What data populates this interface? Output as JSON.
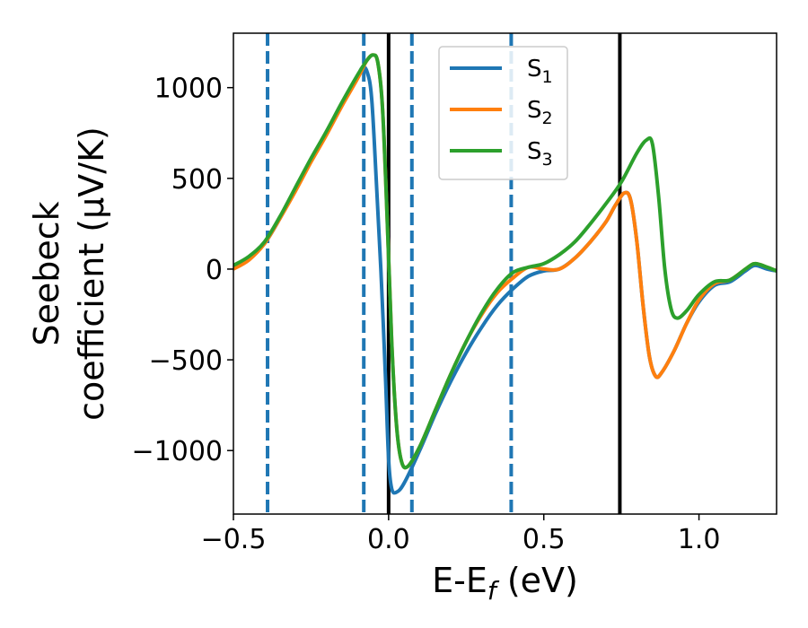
{
  "chart_data": {
    "type": "line",
    "xlabel": "E-E_f (eV)",
    "ylabel": "Seebeck coefficient (μV/K)",
    "ylabel_lines": [
      "Seebeck",
      "coefficient  (μV/K)"
    ],
    "xlim": [
      -0.5,
      1.25
    ],
    "ylim": [
      -1350,
      1300
    ],
    "xticks": [
      -0.5,
      0.0,
      0.5,
      1.0
    ],
    "xtick_labels": [
      "−0.5",
      "0.0",
      "0.5",
      "1.0"
    ],
    "yticks": [
      -1000,
      -500,
      0,
      500,
      1000
    ],
    "ytick_labels": [
      "−1000",
      "−500",
      "0",
      "500",
      "1000"
    ],
    "grid": false,
    "legend_position": "top-center",
    "vlines_dashed": [
      -0.39,
      -0.08,
      0.075,
      0.395
    ],
    "vlines_solid": [
      0.0,
      0.745
    ],
    "vline_dashed_color": "#1f77b4",
    "vline_solid_color": "#000000",
    "series": [
      {
        "name": "S1",
        "color": "#1f77b4",
        "points": [
          [
            -0.5,
            10
          ],
          [
            -0.45,
            60
          ],
          [
            -0.4,
            140
          ],
          [
            -0.35,
            280
          ],
          [
            -0.3,
            440
          ],
          [
            -0.25,
            600
          ],
          [
            -0.2,
            750
          ],
          [
            -0.15,
            910
          ],
          [
            -0.1,
            1060
          ],
          [
            -0.085,
            1110
          ],
          [
            -0.07,
            1090
          ],
          [
            -0.055,
            950
          ],
          [
            -0.04,
            500
          ],
          [
            -0.025,
            0
          ],
          [
            -0.01,
            -600
          ],
          [
            0.0,
            -1050
          ],
          [
            0.01,
            -1210
          ],
          [
            0.025,
            -1230
          ],
          [
            0.05,
            -1180
          ],
          [
            0.1,
            -1000
          ],
          [
            0.15,
            -800
          ],
          [
            0.2,
            -620
          ],
          [
            0.25,
            -460
          ],
          [
            0.3,
            -320
          ],
          [
            0.35,
            -200
          ],
          [
            0.4,
            -110
          ],
          [
            0.45,
            -40
          ],
          [
            0.5,
            -10
          ],
          [
            0.55,
            0
          ],
          [
            0.6,
            60
          ],
          [
            0.65,
            150
          ],
          [
            0.7,
            260
          ],
          [
            0.73,
            350
          ],
          [
            0.76,
            420
          ],
          [
            0.78,
            380
          ],
          [
            0.8,
            150
          ],
          [
            0.82,
            -200
          ],
          [
            0.84,
            -480
          ],
          [
            0.86,
            -590
          ],
          [
            0.88,
            -570
          ],
          [
            0.92,
            -450
          ],
          [
            0.96,
            -300
          ],
          [
            1.0,
            -180
          ],
          [
            1.05,
            -90
          ],
          [
            1.1,
            -70
          ],
          [
            1.15,
            -10
          ],
          [
            1.18,
            20
          ],
          [
            1.22,
            0
          ],
          [
            1.25,
            -10
          ]
        ]
      },
      {
        "name": "S2",
        "color": "#ff7f0e",
        "points": [
          [
            -0.5,
            0
          ],
          [
            -0.45,
            50
          ],
          [
            -0.4,
            140
          ],
          [
            -0.35,
            280
          ],
          [
            -0.3,
            430
          ],
          [
            -0.25,
            590
          ],
          [
            -0.2,
            740
          ],
          [
            -0.15,
            900
          ],
          [
            -0.1,
            1050
          ],
          [
            -0.07,
            1150
          ],
          [
            -0.05,
            1180
          ],
          [
            -0.035,
            1140
          ],
          [
            -0.02,
            900
          ],
          [
            -0.005,
            300
          ],
          [
            0.01,
            -400
          ],
          [
            0.025,
            -850
          ],
          [
            0.04,
            -1050
          ],
          [
            0.06,
            -1090
          ],
          [
            0.1,
            -980
          ],
          [
            0.15,
            -780
          ],
          [
            0.2,
            -580
          ],
          [
            0.25,
            -400
          ],
          [
            0.3,
            -250
          ],
          [
            0.35,
            -130
          ],
          [
            0.4,
            -50
          ],
          [
            0.45,
            10
          ],
          [
            0.5,
            0
          ],
          [
            0.55,
            0
          ],
          [
            0.6,
            60
          ],
          [
            0.65,
            150
          ],
          [
            0.7,
            260
          ],
          [
            0.73,
            350
          ],
          [
            0.76,
            420
          ],
          [
            0.78,
            380
          ],
          [
            0.8,
            150
          ],
          [
            0.82,
            -200
          ],
          [
            0.84,
            -480
          ],
          [
            0.86,
            -590
          ],
          [
            0.88,
            -570
          ],
          [
            0.92,
            -450
          ],
          [
            0.96,
            -300
          ],
          [
            1.0,
            -170
          ],
          [
            1.05,
            -80
          ],
          [
            1.1,
            -60
          ],
          [
            1.15,
            0
          ],
          [
            1.18,
            30
          ],
          [
            1.22,
            10
          ],
          [
            1.25,
            -10
          ]
        ]
      },
      {
        "name": "S3",
        "color": "#2ca02c",
        "points": [
          [
            -0.5,
            20
          ],
          [
            -0.45,
            70
          ],
          [
            -0.4,
            150
          ],
          [
            -0.35,
            290
          ],
          [
            -0.3,
            450
          ],
          [
            -0.25,
            610
          ],
          [
            -0.2,
            760
          ],
          [
            -0.15,
            920
          ],
          [
            -0.1,
            1070
          ],
          [
            -0.07,
            1150
          ],
          [
            -0.05,
            1180
          ],
          [
            -0.035,
            1140
          ],
          [
            -0.02,
            900
          ],
          [
            -0.005,
            300
          ],
          [
            0.01,
            -400
          ],
          [
            0.025,
            -850
          ],
          [
            0.04,
            -1050
          ],
          [
            0.06,
            -1090
          ],
          [
            0.1,
            -980
          ],
          [
            0.15,
            -780
          ],
          [
            0.2,
            -580
          ],
          [
            0.25,
            -400
          ],
          [
            0.3,
            -240
          ],
          [
            0.35,
            -110
          ],
          [
            0.4,
            -20
          ],
          [
            0.45,
            10
          ],
          [
            0.5,
            30
          ],
          [
            0.55,
            80
          ],
          [
            0.6,
            150
          ],
          [
            0.65,
            250
          ],
          [
            0.7,
            360
          ],
          [
            0.75,
            480
          ],
          [
            0.8,
            640
          ],
          [
            0.83,
            710
          ],
          [
            0.85,
            690
          ],
          [
            0.87,
            400
          ],
          [
            0.89,
            0
          ],
          [
            0.91,
            -220
          ],
          [
            0.93,
            -270
          ],
          [
            0.96,
            -230
          ],
          [
            1.0,
            -140
          ],
          [
            1.05,
            -70
          ],
          [
            1.1,
            -60
          ],
          [
            1.15,
            0
          ],
          [
            1.18,
            30
          ],
          [
            1.22,
            10
          ],
          [
            1.25,
            -10
          ]
        ]
      }
    ]
  }
}
